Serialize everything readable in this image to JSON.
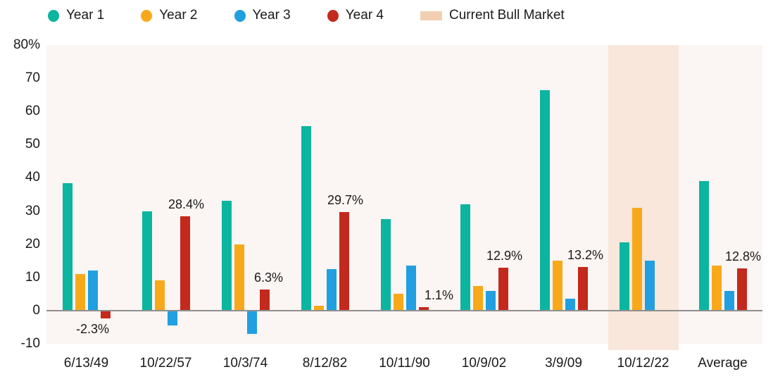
{
  "legend": {
    "items": [
      {
        "label": "Year 1",
        "color": "#0CB5A0",
        "shape": "dot"
      },
      {
        "label": "Year 2",
        "color": "#F8A91A",
        "shape": "dot"
      },
      {
        "label": "Year 3",
        "color": "#219FE0",
        "shape": "dot"
      },
      {
        "label": "Year 4",
        "color": "#C4291D",
        "shape": "dot"
      },
      {
        "label": "Current Bull Market",
        "color": "#F2CFB2",
        "shape": "swatch"
      }
    ]
  },
  "chart_data": {
    "type": "bar",
    "title": "",
    "xlabel": "",
    "ylabel": "",
    "grid": false,
    "legend_position": "top",
    "plot_background": "#FBF5F3",
    "categories": [
      "6/13/49",
      "10/22/57",
      "10/3/74",
      "8/12/82",
      "10/11/90",
      "10/9/02",
      "3/9/09",
      "10/12/22",
      "Average"
    ],
    "series": [
      {
        "name": "Year 1",
        "color": "#0CB5A0",
        "values": [
          38.5,
          30,
          33,
          55.5,
          27.5,
          32,
          66.5,
          20.5,
          39
        ]
      },
      {
        "name": "Year 2",
        "color": "#F8A91A",
        "values": [
          11,
          9,
          20,
          1.5,
          5,
          7.5,
          15,
          31,
          13.5
        ]
      },
      {
        "name": "Year 3",
        "color": "#219FE0",
        "values": [
          12,
          -4.5,
          -7,
          12.5,
          13.5,
          6,
          3.5,
          15,
          6
        ]
      },
      {
        "name": "Year 4",
        "color": "#C4291D",
        "values": [
          -2.3,
          28.4,
          6.3,
          29.7,
          1.1,
          12.9,
          13.2,
          null,
          12.8
        ]
      }
    ],
    "data_labels": {
      "series": "Year 4",
      "texts": [
        "-2.3%",
        "28.4%",
        "6.3%",
        "29.7%",
        "1.1%",
        "12.9%",
        "13.2%",
        null,
        "12.8%"
      ]
    },
    "highlight_band": {
      "category": "10/12/22",
      "label": "Current Bull Market",
      "color": "#F8E7DA"
    },
    "y_axis": {
      "range": [
        -10,
        80
      ],
      "ticks": [
        {
          "label": "80%",
          "value": 80
        },
        {
          "label": "70",
          "value": 70
        },
        {
          "label": "60",
          "value": 60
        },
        {
          "label": "50",
          "value": 50
        },
        {
          "label": "40",
          "value": 40
        },
        {
          "label": "30",
          "value": 30
        },
        {
          "label": "20",
          "value": 20
        },
        {
          "label": "10",
          "value": 10
        },
        {
          "label": "0",
          "value": 0
        },
        {
          "label": "-10",
          "value": -10
        }
      ]
    }
  }
}
